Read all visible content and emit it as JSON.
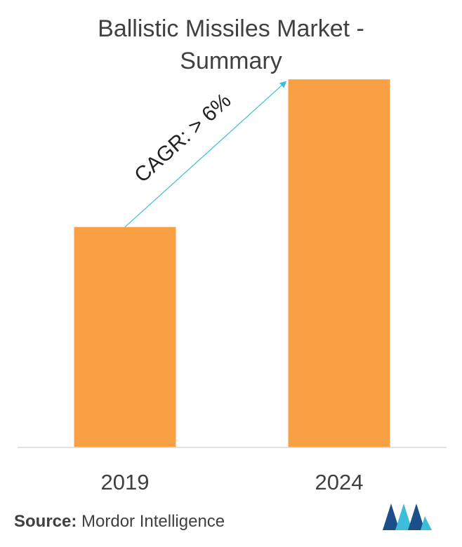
{
  "title_line1": "Ballistic Missiles Market -",
  "title_line2": "Summary",
  "chart_data": {
    "type": "bar",
    "categories": [
      "2019",
      "2024"
    ],
    "values": [
      1.0,
      1.67
    ],
    "ylim": [
      0,
      1.75
    ],
    "grid": false,
    "annotation": "CAGR: > 6%",
    "bar_color": "#F9A044",
    "arrow_color": "#3DBDD7"
  },
  "source_label": "Source:",
  "source_value": " Mordor Intelligence",
  "colors": {
    "logo_dark": "#1C4E8A",
    "logo_light": "#3DBDD7"
  }
}
